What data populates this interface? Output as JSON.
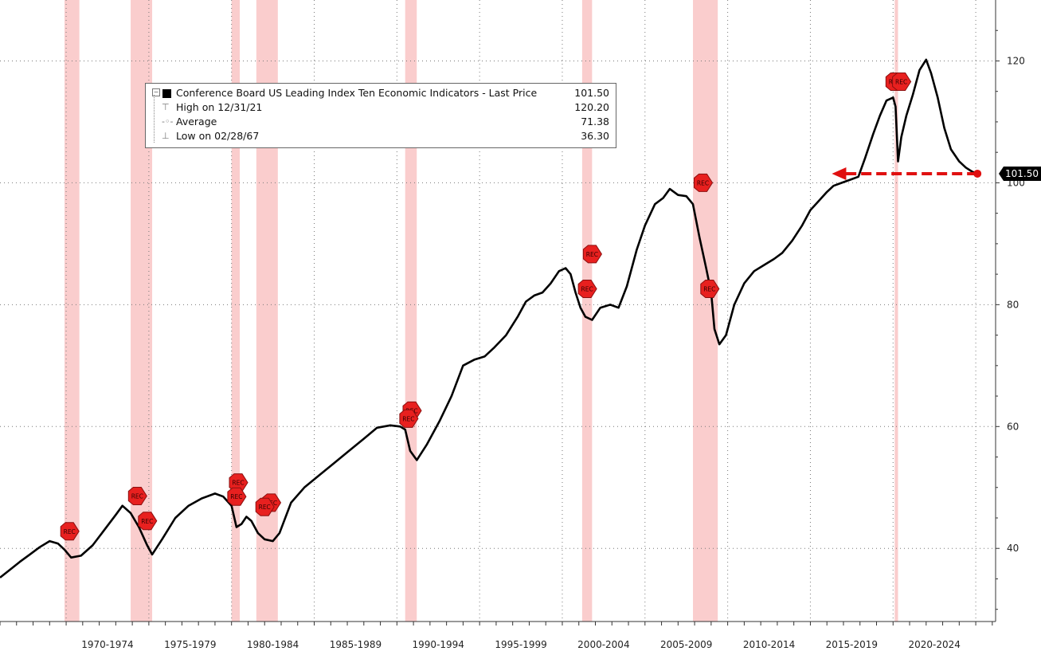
{
  "chart_data": {
    "type": "line",
    "title": "Conference Board US Leading Index Ten Economic Indicators",
    "xlabel": "",
    "ylabel": "",
    "xlim": [
      1966.0,
      2026.2
    ],
    "ylim": [
      28,
      130
    ],
    "y_ticks": [
      40,
      60,
      80,
      100,
      120
    ],
    "x_tick_labels": [
      {
        "label": "1970-1974",
        "start": 1970,
        "end": 1975
      },
      {
        "label": "1975-1979",
        "start": 1975,
        "end": 1980
      },
      {
        "label": "1980-1984",
        "start": 1980,
        "end": 1985
      },
      {
        "label": "1985-1989",
        "start": 1985,
        "end": 1990
      },
      {
        "label": "1990-1994",
        "start": 1990,
        "end": 1995
      },
      {
        "label": "1995-1999",
        "start": 1995,
        "end": 2000
      },
      {
        "label": "2000-2004",
        "start": 2000,
        "end": 2005
      },
      {
        "label": "2005-2009",
        "start": 2005,
        "end": 2010
      },
      {
        "label": "2010-2014",
        "start": 2010,
        "end": 2015
      },
      {
        "label": "2015-2019",
        "start": 2015,
        "end": 2020
      },
      {
        "label": "2020-2024",
        "start": 2020,
        "end": 2025
      }
    ],
    "recessions": [
      {
        "start": 1969.9,
        "end": 1970.8
      },
      {
        "start": 1973.9,
        "end": 1975.2
      },
      {
        "start": 1980.0,
        "end": 1980.5
      },
      {
        "start": 1981.5,
        "end": 1982.8
      },
      {
        "start": 1990.5,
        "end": 1991.2
      },
      {
        "start": 2001.2,
        "end": 2001.8
      },
      {
        "start": 2007.9,
        "end": 2009.4
      },
      {
        "start": 2020.1,
        "end": 2020.3
      }
    ],
    "series": [
      {
        "name": "Conference Board US Leading Index Ten Economic Indicators - Last Price",
        "color": "#000000",
        "x": [
          1966.0,
          1966.6,
          1967.2,
          1967.8,
          1968.4,
          1969.0,
          1969.5,
          1969.9,
          1970.3,
          1970.9,
          1971.6,
          1972.3,
          1973.0,
          1973.4,
          1973.9,
          1974.4,
          1974.9,
          1975.2,
          1975.8,
          1976.6,
          1977.4,
          1978.2,
          1979.0,
          1979.5,
          1980.0,
          1980.3,
          1980.6,
          1980.9,
          1981.2,
          1981.6,
          1982.0,
          1982.5,
          1982.9,
          1983.6,
          1984.4,
          1985.3,
          1986.2,
          1987.1,
          1988.0,
          1988.8,
          1989.6,
          1990.2,
          1990.5,
          1990.8,
          1991.2,
          1991.8,
          1992.6,
          1993.3,
          1994.0,
          1994.7,
          1995.3,
          1995.9,
          1996.6,
          1997.3,
          1997.8,
          1998.3,
          1998.8,
          1999.3,
          1999.8,
          2000.2,
          2000.5,
          2000.8,
          2001.1,
          2001.4,
          2001.8,
          2002.3,
          2002.9,
          2003.4,
          2003.9,
          2004.5,
          2005.0,
          2005.6,
          2006.1,
          2006.5,
          2007.0,
          2007.5,
          2007.9,
          2008.3,
          2008.7,
          2009.0,
          2009.2,
          2009.5,
          2009.9,
          2010.4,
          2011.0,
          2011.6,
          2012.2,
          2012.8,
          2013.3,
          2013.9,
          2014.5,
          2015.0,
          2015.5,
          2016.0,
          2016.4,
          2016.9,
          2017.4,
          2017.9,
          2018.3,
          2018.8,
          2019.2,
          2019.6,
          2020.0,
          2020.15,
          2020.3,
          2020.5,
          2020.8,
          2021.2,
          2021.6,
          2022.0,
          2022.3,
          2022.7,
          2023.1,
          2023.5,
          2024.0,
          2024.4,
          2024.8,
          2025.1
        ],
        "y": [
          35.2,
          36.5,
          37.8,
          39.0,
          40.2,
          41.2,
          40.8,
          39.8,
          38.5,
          38.8,
          40.5,
          43.0,
          45.5,
          47.0,
          45.8,
          43.5,
          40.5,
          39.0,
          41.5,
          45.0,
          47.0,
          48.2,
          49.0,
          48.5,
          47.0,
          43.5,
          44.0,
          45.2,
          44.5,
          42.5,
          41.5,
          41.2,
          42.5,
          47.5,
          50.0,
          52.0,
          54.0,
          56.0,
          58.0,
          59.8,
          60.2,
          60.0,
          59.5,
          56.0,
          54.5,
          57.0,
          61.0,
          65.0,
          70.0,
          71.0,
          71.5,
          73.0,
          75.0,
          78.0,
          80.5,
          81.5,
          82.0,
          83.5,
          85.5,
          86.0,
          85.0,
          82.0,
          79.5,
          78.0,
          77.5,
          79.5,
          80.0,
          79.5,
          83.0,
          89.0,
          93.0,
          96.5,
          97.5,
          99.0,
          98.0,
          97.8,
          96.5,
          91.0,
          86.0,
          82.0,
          76.0,
          73.5,
          75.0,
          80.0,
          83.5,
          85.5,
          86.5,
          87.5,
          88.5,
          90.5,
          93.0,
          95.5,
          97.0,
          98.5,
          99.5,
          100.0,
          100.5,
          101.0,
          104.0,
          108.0,
          111.0,
          113.5,
          114.0,
          112.5,
          103.5,
          107.5,
          111.0,
          114.5,
          118.5,
          120.2,
          118.0,
          114.0,
          109.0,
          105.5,
          103.5,
          102.5,
          101.8,
          101.5
        ]
      }
    ],
    "rec_markers": [
      {
        "x": 1970.2,
        "y": 42.8
      },
      {
        "x": 1974.3,
        "y": 48.6
      },
      {
        "x": 1974.9,
        "y": 44.5
      },
      {
        "x": 1980.4,
        "y": 50.8
      },
      {
        "x": 1980.3,
        "y": 48.5
      },
      {
        "x": 1982.4,
        "y": 47.5
      },
      {
        "x": 1982.0,
        "y": 46.8
      },
      {
        "x": 1990.9,
        "y": 62.6
      },
      {
        "x": 1990.7,
        "y": 61.3
      },
      {
        "x": 2001.8,
        "y": 88.3
      },
      {
        "x": 2001.5,
        "y": 82.6
      },
      {
        "x": 2008.5,
        "y": 100.0
      },
      {
        "x": 2008.9,
        "y": 82.6
      },
      {
        "x": 2020.1,
        "y": 116.6
      },
      {
        "x": 2020.5,
        "y": 116.6
      }
    ],
    "rec_marker_label": "REC",
    "last_value": 101.5,
    "last_value_label": "101.50",
    "legend": [
      {
        "label": "Conference Board US Leading Index Ten Economic Indicators - Last Price",
        "value": "101.50"
      },
      {
        "label": "High on 12/31/21",
        "value": "120.20"
      },
      {
        "label": "Average",
        "value": "71.38"
      },
      {
        "label": "Low on 02/28/67",
        "value": "36.30"
      }
    ],
    "colors": {
      "line": "#000000",
      "recession": "#f9c4c4",
      "marker": "#e8201f",
      "arrow": "#e01010",
      "grid": "#777777"
    }
  }
}
